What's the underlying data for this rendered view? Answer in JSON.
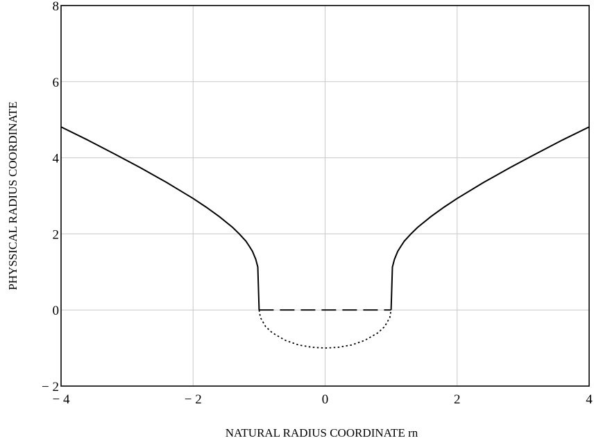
{
  "chart_data": {
    "type": "line",
    "title": "",
    "xlabel": "NATURAL RADIUS COORDINATE rn",
    "ylabel": "PHYSSICAL RADIUS COORDINATE",
    "xlim": [
      -4,
      4
    ],
    "ylim": [
      -2,
      8
    ],
    "x_ticks": [
      -4,
      -2,
      0,
      2,
      4
    ],
    "x_tick_labels": [
      "− 4",
      "− 2",
      "0",
      "2",
      "4"
    ],
    "y_ticks": [
      -2,
      0,
      2,
      4,
      6,
      8
    ],
    "y_tick_labels": [
      "− 2",
      "0",
      "2",
      "4",
      "6",
      "8"
    ],
    "grid": true,
    "legend": "none",
    "series": [
      {
        "style": "solid",
        "color": "#000000",
        "x": [
          -4.0,
          -3.6,
          -3.2,
          -2.8,
          -2.4,
          -2.0,
          -1.8,
          -1.6,
          -1.4,
          -1.3,
          -1.2,
          -1.15,
          -1.1,
          -1.05,
          -1.02,
          -1.0
        ],
        "y": [
          4.81,
          4.47,
          4.11,
          3.74,
          3.35,
          2.93,
          2.7,
          2.45,
          2.17,
          2.0,
          1.81,
          1.68,
          1.54,
          1.33,
          1.13,
          0.0
        ]
      },
      {
        "style": "solid",
        "color": "#000000",
        "x": [
          1.0,
          1.02,
          1.05,
          1.1,
          1.15,
          1.2,
          1.3,
          1.4,
          1.6,
          1.8,
          2.0,
          2.4,
          2.8,
          3.2,
          3.6,
          4.0
        ],
        "y": [
          0.0,
          1.13,
          1.33,
          1.54,
          1.68,
          1.81,
          2.0,
          2.17,
          2.45,
          2.7,
          2.93,
          3.35,
          3.74,
          4.11,
          4.47,
          4.81
        ]
      },
      {
        "style": "dashed",
        "color": "#000000",
        "x": [
          -1.0,
          1.0
        ],
        "y": [
          0.0,
          0.0
        ]
      },
      {
        "style": "dotted",
        "color": "#000000",
        "x": [
          -1.0,
          -0.98,
          -0.9,
          -0.8,
          -0.6,
          -0.4,
          -0.2,
          0.0,
          0.2,
          0.4,
          0.6,
          0.8,
          0.9,
          0.98,
          1.0
        ],
        "y": [
          0.0,
          -0.2,
          -0.44,
          -0.6,
          -0.8,
          -0.92,
          -0.98,
          -1.0,
          -0.98,
          -0.92,
          -0.8,
          -0.6,
          -0.44,
          -0.2,
          0.0
        ]
      }
    ]
  }
}
